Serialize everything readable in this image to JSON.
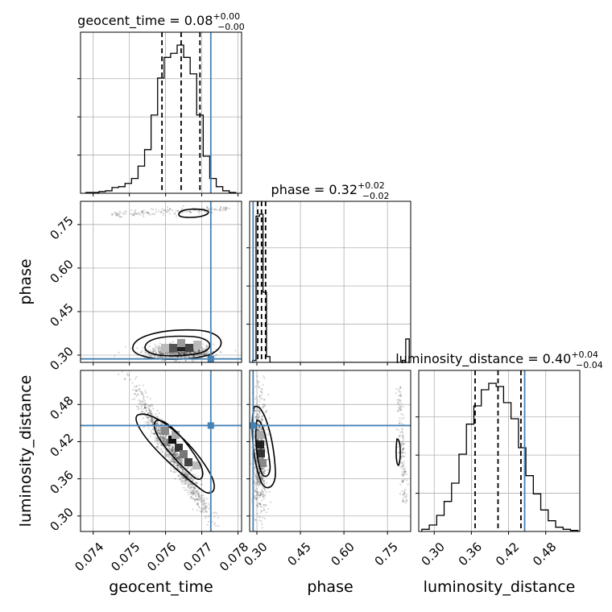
{
  "chart_data": {
    "type": "corner",
    "parameters": [
      "geocent_time",
      "phase",
      "luminosity_distance"
    ],
    "titles": [
      {
        "param": "geocent_time",
        "label": "geocent_time",
        "median": "0.08",
        "plus": "+0.00",
        "minus": "−0.00"
      },
      {
        "param": "phase",
        "label": "phase",
        "median": "0.32",
        "plus": "+0.02",
        "minus": "−0.02"
      },
      {
        "param": "luminosity_distance",
        "label": "luminosity_distance",
        "median": "0.40",
        "plus": "+0.04",
        "minus": "−0.04"
      }
    ],
    "axes": {
      "geocent_time": {
        "range": [
          0.07365,
          0.0781
        ],
        "ticks": [
          0.074,
          0.075,
          0.076,
          0.077,
          0.078
        ],
        "tick_labels": [
          "0.074",
          "0.075",
          "0.076",
          "0.077",
          "0.078"
        ]
      },
      "phase": {
        "range": [
          0.275,
          0.83
        ],
        "ticks": [
          0.3,
          0.45,
          0.6,
          0.75
        ],
        "tick_labels": [
          "0.30",
          "0.45",
          "0.60",
          "0.75"
        ]
      },
      "luminosity_distance": {
        "range": [
          0.275,
          0.535
        ],
        "ticks": [
          0.3,
          0.36,
          0.42,
          0.48
        ],
        "tick_labels": [
          "0.30",
          "0.36",
          "0.42",
          "0.48"
        ]
      }
    },
    "truths": {
      "geocent_time": 0.07725,
      "phase": 0.287,
      "luminosity_distance": 0.446
    },
    "quantiles": {
      "geocent_time": [
        0.0759,
        0.07643,
        0.07695
      ],
      "phase": [
        0.303,
        0.316,
        0.33
      ],
      "luminosity_distance": [
        0.366,
        0.403,
        0.44
      ]
    },
    "histograms": {
      "geocent_time": {
        "edges": [
          0.0738,
          0.07398,
          0.07416,
          0.07434,
          0.07452,
          0.0747,
          0.07488,
          0.07506,
          0.07524,
          0.07542,
          0.0756,
          0.07578,
          0.07596,
          0.07614,
          0.07632,
          0.0765,
          0.07668,
          0.07686,
          0.07704,
          0.07722,
          0.0774,
          0.07758,
          0.07776,
          0.07794
        ],
        "counts": [
          1,
          1,
          2,
          3,
          7,
          8,
          12,
          18,
          33,
          53,
          95,
          140,
          165,
          170,
          180,
          165,
          145,
          95,
          45,
          18,
          8,
          3,
          1
        ]
      },
      "phase": {
        "edges": [
          0.285,
          0.297,
          0.309,
          0.321,
          0.333,
          0.345,
          0.357,
          0.369,
          0.381,
          0.393,
          0.405,
          0.417,
          0.429,
          0.441,
          0.453,
          0.465,
          0.477,
          0.489,
          0.501,
          0.513,
          0.525,
          0.537,
          0.549,
          0.561,
          0.573,
          0.585,
          0.597,
          0.609,
          0.621,
          0.633,
          0.645,
          0.657,
          0.669,
          0.681,
          0.693,
          0.705,
          0.717,
          0.729,
          0.741,
          0.753,
          0.765,
          0.777,
          0.789,
          0.801,
          0.813,
          0.825
        ],
        "counts": [
          10,
          750,
          760,
          360,
          30,
          0,
          0,
          0,
          0,
          0,
          0,
          0,
          0,
          0,
          0,
          0,
          0,
          0,
          0,
          0,
          0,
          0,
          0,
          0,
          0,
          0,
          0,
          0,
          0,
          0,
          0,
          0,
          0,
          0,
          0,
          0,
          0,
          0,
          0,
          0,
          0,
          0,
          0,
          10,
          120,
          30
        ]
      },
      "luminosity_distance": {
        "edges": [
          0.28,
          0.292,
          0.304,
          0.316,
          0.328,
          0.34,
          0.352,
          0.364,
          0.376,
          0.388,
          0.4,
          0.412,
          0.424,
          0.436,
          0.448,
          0.46,
          0.472,
          0.484,
          0.496,
          0.508,
          0.52,
          0.532
        ],
        "counts": [
          2,
          6,
          15,
          28,
          45,
          72,
          100,
          117,
          132,
          138,
          135,
          120,
          105,
          78,
          52,
          35,
          20,
          10,
          4,
          2,
          1
        ]
      }
    }
  }
}
